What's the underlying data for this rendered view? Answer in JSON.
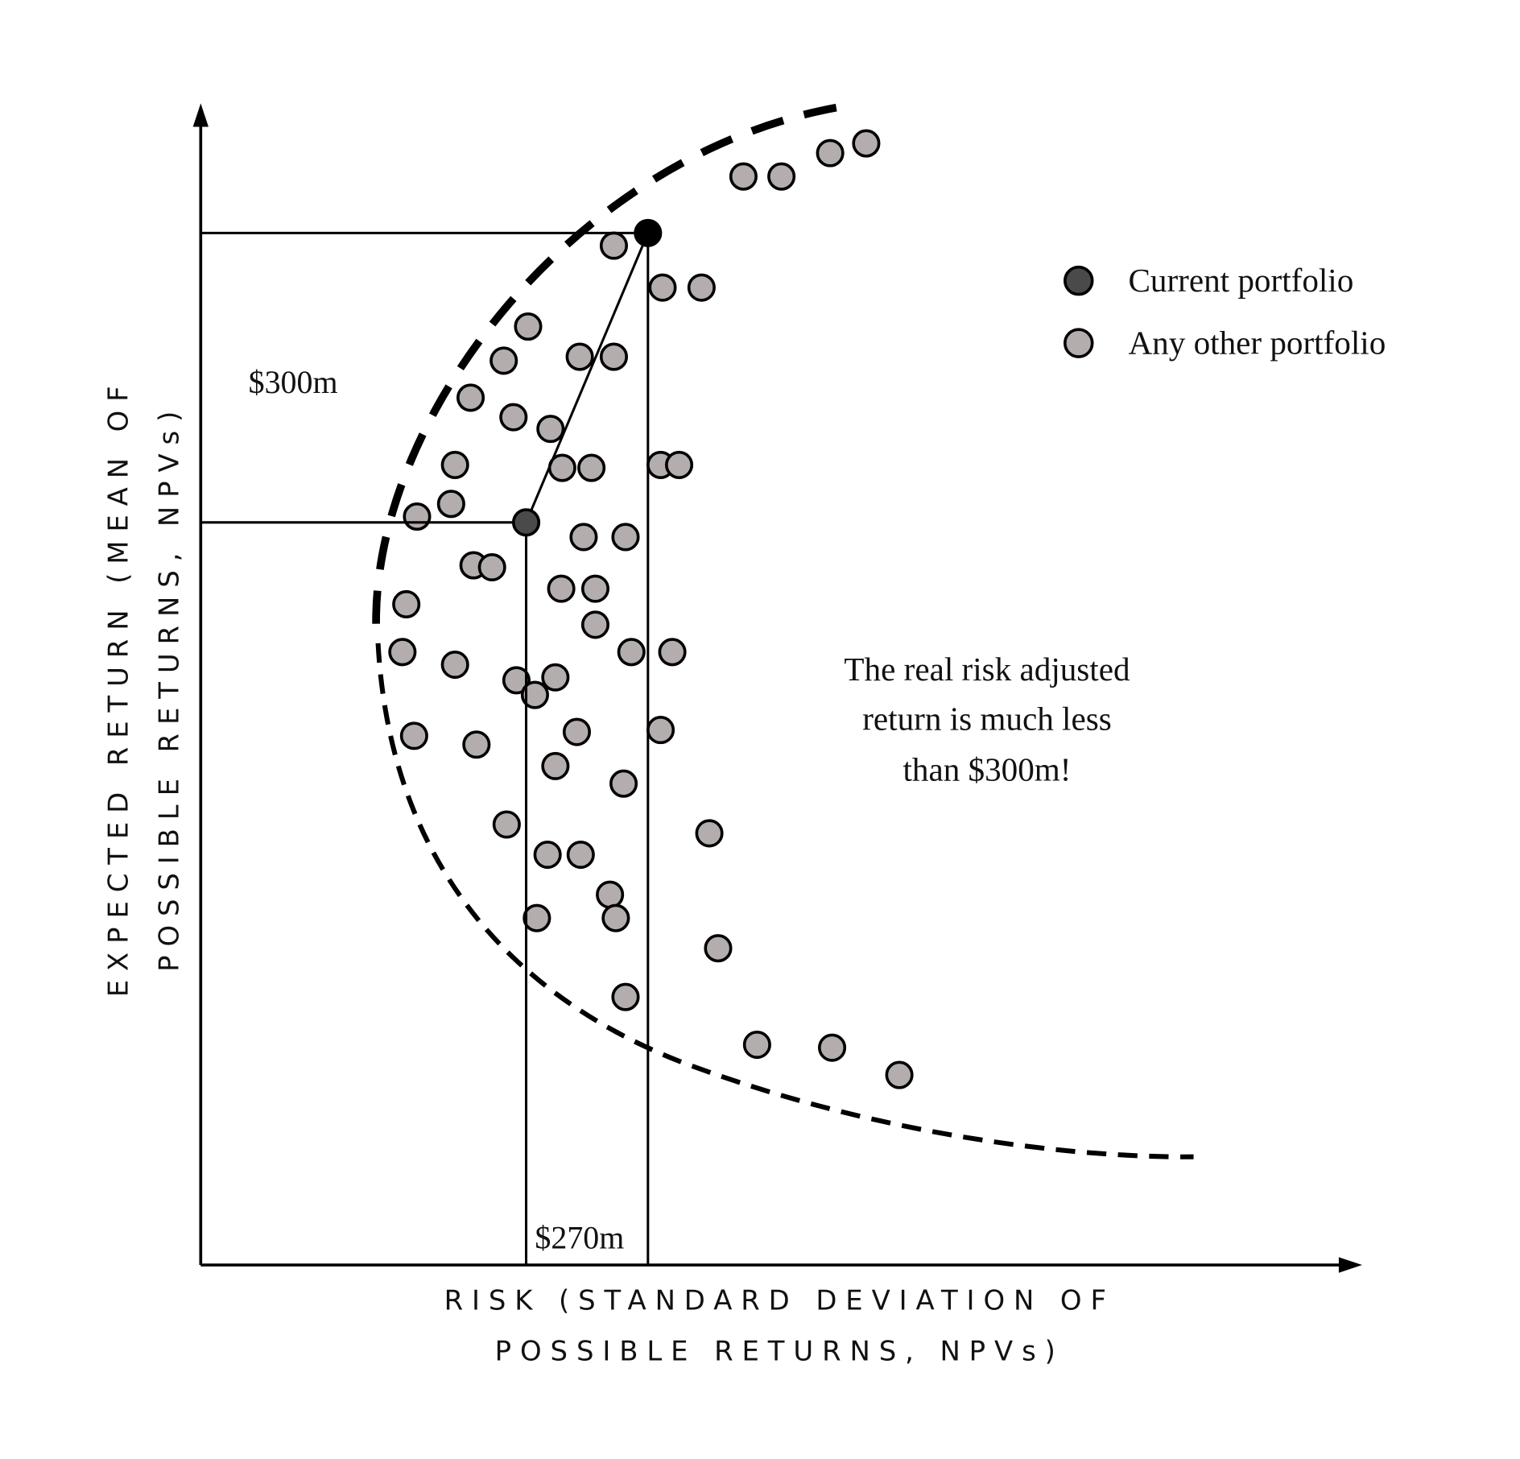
{
  "axes": {
    "x_label_line1": "RISK (STANDARD DEVIATION OF",
    "x_label_line2": "POSSIBLE RETURNS, NPVs)",
    "y_label_line1": "EXPECTED RETURN (MEAN OF",
    "y_label_line2": "POSSIBLE RETURNS, NPVs)"
  },
  "labels": {
    "expected_return": "$300m",
    "risk_adjusted": "$270m"
  },
  "annotation": {
    "line1": "The real risk adjusted",
    "line2": "return is much less",
    "line3": "than $300m!"
  },
  "legend": {
    "items": [
      {
        "label": "Current portfolio",
        "color": "#4a4a4a"
      },
      {
        "label": "Any other portfolio",
        "color": "#b3adad"
      }
    ]
  },
  "colors": {
    "current_portfolio": "#4a4a4a",
    "other_portfolio": "#b3adad",
    "frontier_point": "#000000",
    "lines": "#000000"
  }
}
